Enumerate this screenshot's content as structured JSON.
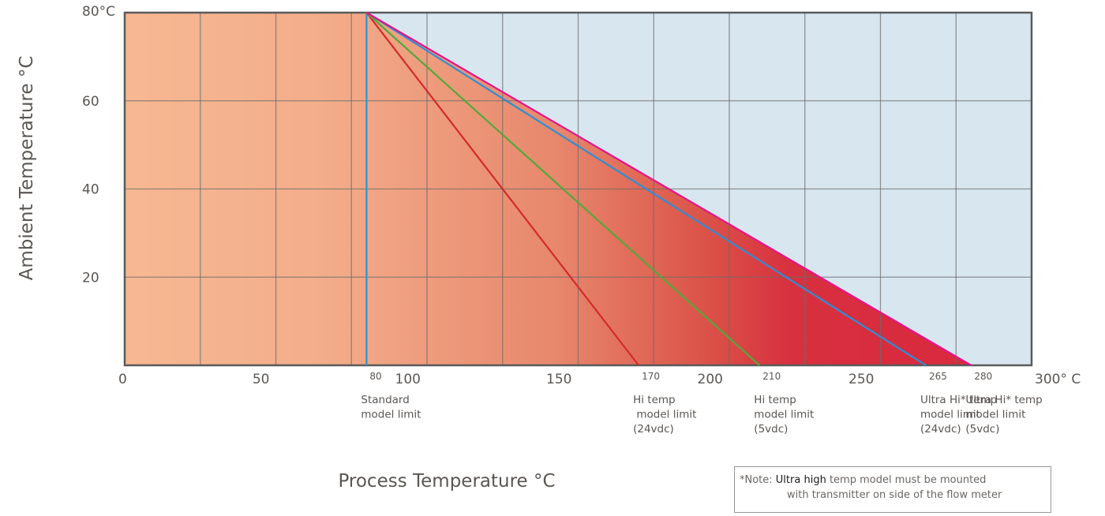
{
  "chart_data": {
    "type": "line",
    "xlabel": "Process Temperature °C",
    "ylabel": "Ambient Temperature °C",
    "xlim": [
      0,
      300
    ],
    "ylim": [
      0,
      80
    ],
    "grid": true,
    "x_tick_labels": [
      {
        "x": 0,
        "label": "0"
      },
      {
        "x": 50,
        "label": "50"
      },
      {
        "x": 100,
        "label": "100"
      },
      {
        "x": 150,
        "label": "150"
      },
      {
        "x": 200,
        "label": "200"
      },
      {
        "x": 250,
        "label": "250"
      },
      {
        "x": 300,
        "label": "300° C"
      }
    ],
    "y_tick_labels": [
      {
        "y": 20,
        "label": "20"
      },
      {
        "y": 40,
        "label": "40"
      },
      {
        "y": 60,
        "label": "60"
      },
      {
        "y": 80,
        "label": "80°C"
      }
    ],
    "limit_markers": [
      {
        "x": 80,
        "label": "80",
        "caption": [
          "Standard",
          "model limit"
        ]
      },
      {
        "x": 170,
        "label": "170",
        "caption": [
          "Hi temp",
          " model limit",
          "(24vdc)"
        ]
      },
      {
        "x": 210,
        "label": "210",
        "caption": [
          "Hi temp",
          "model limit",
          "(5vdc)"
        ]
      },
      {
        "x": 265,
        "label": "265",
        "caption": [
          "Ultra Hi* temp",
          "model limit",
          "(24vdc)"
        ]
      },
      {
        "x": 280,
        "label": "280",
        "caption": [
          "Ultra Hi* temp",
          "model limit",
          "(5vdc)"
        ]
      }
    ],
    "series": [
      {
        "color": "#1f9ad6",
        "x": [
          80,
          80
        ],
        "y": [
          0,
          80
        ]
      },
      {
        "color": "#d42a2a",
        "x": [
          80,
          170
        ],
        "y": [
          80,
          0
        ]
      },
      {
        "color": "#52a83c",
        "x": [
          80,
          210
        ],
        "y": [
          80,
          0
        ]
      },
      {
        "color": "#2b8fd8",
        "x": [
          80,
          265
        ],
        "y": [
          80,
          0
        ]
      },
      {
        "color": "#e5148a",
        "x": [
          80,
          280
        ],
        "y": [
          80,
          0
        ]
      }
    ],
    "colors": {
      "safe_zone": "#f6b892",
      "danger_zone": "#d9273e",
      "outside_zone": "#d8e6ef",
      "grid": "#6b6b6b"
    }
  },
  "note": {
    "prefix": "*Note: ",
    "emphasis": "Ultra high",
    "line1_rest": " temp model must be mounted",
    "line2": "with transmitter on side of the flow meter"
  }
}
